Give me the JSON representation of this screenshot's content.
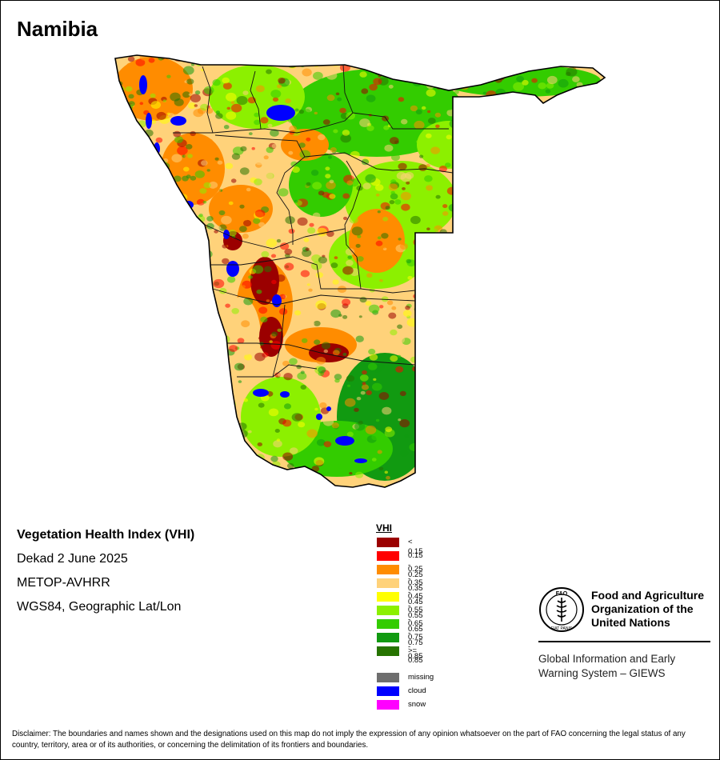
{
  "map": {
    "title": "Namibia",
    "product_name": "Vegetation Health Index (VHI)",
    "period": "Dekad 2 June 2025",
    "sensor": "METOP-AVHRR",
    "projection": "WGS84, Geographic Lat/Lon"
  },
  "legend": {
    "title": "VHI",
    "classes": [
      {
        "label": "< 0.15",
        "color": "#9b0000"
      },
      {
        "label": "0.15 - 0.25",
        "color": "#ff0000"
      },
      {
        "label": "0.25 - 0.35",
        "color": "#ff8c00"
      },
      {
        "label": "0.35 - 0.45",
        "color": "#ffd27a"
      },
      {
        "label": "0.45 - 0.55",
        "color": "#ffff00"
      },
      {
        "label": "0.55 - 0.65",
        "color": "#8cf000"
      },
      {
        "label": "0.65 - 0.75",
        "color": "#33cc00"
      },
      {
        "label": "0.75 - 0.85",
        "color": "#119a11"
      },
      {
        "label": ">= 0.85",
        "color": "#267300"
      }
    ],
    "other": [
      {
        "label": "missing",
        "color": "#6e6e6e"
      },
      {
        "label": "cloud",
        "color": "#0000ff"
      },
      {
        "label": "snow",
        "color": "#ff00ff"
      }
    ]
  },
  "organization": {
    "name_line1": "Food and Agriculture",
    "name_line2": "Organization of the",
    "name_line3": "United Nations",
    "emblem_text": "FAO",
    "motto": "FIAT PANIS",
    "system_line1": "Global Information and Early",
    "system_line2": "Warning System – GIEWS"
  },
  "disclaimer": "Disclaimer: The boundaries and names shown and the designations used on this map do not imply the expression of any opinion whatsoever on the part of FAO concerning the legal status of any country, territory, area or of its authorities, or concerning the delimitation of its frontiers and boundaries."
}
